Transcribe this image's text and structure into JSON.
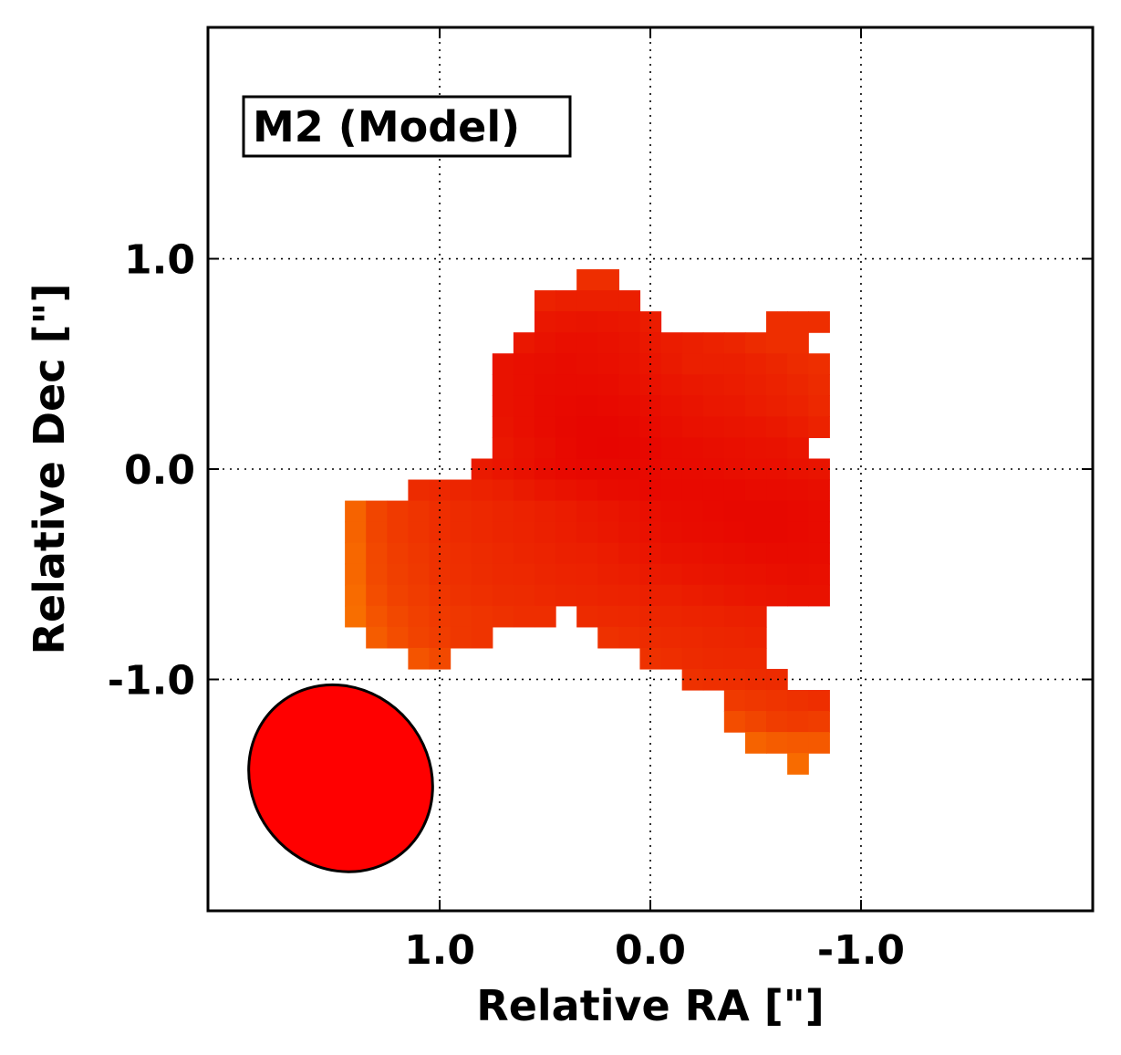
{
  "chart_data": {
    "type": "heatmap",
    "panel_label": "M2 (Model)",
    "xlabel": "Relative RA [\"]",
    "ylabel": "Relative Dec [\"]",
    "xlim": [
      2.1,
      -2.1
    ],
    "ylim": [
      -2.1,
      2.1
    ],
    "xticks": [
      {
        "value": 1.0,
        "label": "1.0"
      },
      {
        "value": 0.0,
        "label": "0.0"
      },
      {
        "value": -1.0,
        "label": "-1.0"
      }
    ],
    "yticks": [
      {
        "value": 1.0,
        "label": "1.0"
      },
      {
        "value": 0.0,
        "label": "0.0"
      },
      {
        "value": -1.0,
        "label": "-1.0"
      }
    ],
    "grid": true,
    "grid_style": "dotted",
    "colormap": "red-orange (red = bright, orange = faint)",
    "pixel_size_arcsec": 0.1,
    "pixel_rows_note": "each row: dec (center), ra_start (east-most pixel center), values listed toward west in 0.1 arcsec steps; value 0-1 intensity",
    "pixel_rows": [
      {
        "dec": 0.9,
        "ra_start": 0.3,
        "values": [
          0.7,
          0.7
        ]
      },
      {
        "dec": 0.8,
        "ra_start": 0.5,
        "values": [
          0.78,
          0.8,
          0.8,
          0.8,
          0.8
        ]
      },
      {
        "dec": 0.7,
        "ra_start": 0.5,
        "values": [
          0.85,
          0.86,
          0.87,
          0.86,
          0.85,
          0.82
        ]
      },
      {
        "dec": 0.7,
        "ra_start": -0.6,
        "values": [
          0.7,
          0.7,
          0.7
        ]
      },
      {
        "dec": 0.6,
        "ra_start": 0.6,
        "values": [
          0.85,
          0.88,
          0.9,
          0.9,
          0.89,
          0.87,
          0.84,
          0.82,
          0.8,
          0.78,
          0.76,
          0.72,
          0.7,
          0.7
        ]
      },
      {
        "dec": 0.5,
        "ra_start": 0.7,
        "values": [
          0.88,
          0.9,
          0.91,
          0.92,
          0.91,
          0.9,
          0.88,
          0.86,
          0.83,
          0.8,
          0.8,
          0.8,
          0.78,
          0.75,
          0.72,
          0.7
        ]
      },
      {
        "dec": 0.4,
        "ra_start": 0.7,
        "values": [
          0.88,
          0.9,
          0.92,
          0.93,
          0.93,
          0.92,
          0.9,
          0.88,
          0.86,
          0.84,
          0.83,
          0.82,
          0.8,
          0.78,
          0.75,
          0.72
        ]
      },
      {
        "dec": 0.3,
        "ra_start": 0.7,
        "values": [
          0.88,
          0.9,
          0.93,
          0.94,
          0.95,
          0.94,
          0.93,
          0.91,
          0.89,
          0.87,
          0.85,
          0.84,
          0.82,
          0.8,
          0.78,
          0.74
        ]
      },
      {
        "dec": 0.2,
        "ra_start": 0.7,
        "values": [
          0.87,
          0.9,
          0.93,
          0.95,
          0.96,
          0.96,
          0.95,
          0.93,
          0.91,
          0.89,
          0.88,
          0.87,
          0.86,
          0.84,
          0.82,
          0.78
        ]
      },
      {
        "dec": 0.1,
        "ra_start": 0.7,
        "values": [
          0.85,
          0.88,
          0.91,
          0.94,
          0.96,
          0.97,
          0.96,
          0.95,
          0.93,
          0.92,
          0.91,
          0.9,
          0.89,
          0.88,
          0.86
        ]
      },
      {
        "dec": 0.0,
        "ra_start": 0.8,
        "values": [
          0.83,
          0.86,
          0.89,
          0.92,
          0.94,
          0.95,
          0.95,
          0.95,
          0.94,
          0.93,
          0.93,
          0.92,
          0.91,
          0.9,
          0.9,
          0.88,
          0.87
        ]
      },
      {
        "dec": -0.1,
        "ra_start": 1.1,
        "values": [
          0.72,
          0.74,
          0.76,
          0.78,
          0.8,
          0.83,
          0.86,
          0.88,
          0.9,
          0.92,
          0.93,
          0.94,
          0.94,
          0.94,
          0.94,
          0.94,
          0.93,
          0.93,
          0.92,
          0.91
        ]
      },
      {
        "dec": -0.2,
        "ra_start": 1.4,
        "values": [
          0.35,
          0.55,
          0.62,
          0.66,
          0.7,
          0.72,
          0.74,
          0.76,
          0.78,
          0.8,
          0.82,
          0.84,
          0.86,
          0.88,
          0.9,
          0.92,
          0.93,
          0.94,
          0.95,
          0.95,
          0.95,
          0.94,
          0.93
        ]
      },
      {
        "dec": -0.3,
        "ra_start": 1.4,
        "values": [
          0.35,
          0.55,
          0.62,
          0.66,
          0.7,
          0.72,
          0.74,
          0.76,
          0.77,
          0.79,
          0.81,
          0.83,
          0.85,
          0.87,
          0.89,
          0.91,
          0.92,
          0.93,
          0.94,
          0.95,
          0.95,
          0.94,
          0.93
        ]
      },
      {
        "dec": -0.4,
        "ra_start": 1.4,
        "values": [
          0.33,
          0.53,
          0.6,
          0.64,
          0.68,
          0.7,
          0.72,
          0.74,
          0.76,
          0.77,
          0.79,
          0.8,
          0.82,
          0.84,
          0.86,
          0.88,
          0.89,
          0.9,
          0.91,
          0.92,
          0.93,
          0.93,
          0.92
        ]
      },
      {
        "dec": -0.5,
        "ra_start": 1.4,
        "values": [
          0.33,
          0.52,
          0.59,
          0.63,
          0.67,
          0.69,
          0.71,
          0.73,
          0.74,
          0.76,
          0.77,
          0.78,
          0.8,
          0.81,
          0.83,
          0.84,
          0.86,
          0.87,
          0.88,
          0.89,
          0.9,
          0.91,
          0.9
        ]
      },
      {
        "dec": -0.6,
        "ra_start": 1.4,
        "values": [
          0.3,
          0.5,
          0.57,
          0.61,
          0.65,
          0.67,
          0.69,
          0.71,
          0.72,
          0.74,
          0.75,
          0.76,
          0.77,
          0.78,
          0.79,
          0.8,
          0.82,
          0.83,
          0.85,
          0.86,
          0.87,
          0.88,
          0.88
        ]
      },
      {
        "dec": -0.7,
        "ra_start": 1.4,
        "values": [
          0.28,
          0.45,
          0.53,
          0.58,
          0.62,
          0.64,
          0.66,
          0.68,
          0.7,
          0.7
        ]
      },
      {
        "dec": -0.7,
        "ra_start": 0.3,
        "values": [
          0.72,
          0.73,
          0.74,
          0.75,
          0.76,
          0.77,
          0.78,
          0.79,
          0.8
        ]
      },
      {
        "dec": -0.8,
        "ra_start": 1.3,
        "values": [
          0.4,
          0.5,
          0.56,
          0.6,
          0.64,
          0.66
        ]
      },
      {
        "dec": -0.8,
        "ra_start": 0.2,
        "values": [
          0.68,
          0.7,
          0.72,
          0.73,
          0.74,
          0.75,
          0.76,
          0.77
        ]
      },
      {
        "dec": -0.9,
        "ra_start": 1.1,
        "values": [
          0.45,
          0.52
        ]
      },
      {
        "dec": -0.9,
        "ra_start": 0.0,
        "values": [
          0.68,
          0.7,
          0.72,
          0.73,
          0.74,
          0.74
        ]
      },
      {
        "dec": -1.0,
        "ra_start": -0.2,
        "values": [
          0.68,
          0.69,
          0.7,
          0.71,
          0.72
        ]
      },
      {
        "dec": -1.1,
        "ra_start": -0.4,
        "values": [
          0.62,
          0.64,
          0.66,
          0.68,
          0.7
        ]
      },
      {
        "dec": -1.2,
        "ra_start": -0.4,
        "values": [
          0.5,
          0.55,
          0.6,
          0.62,
          0.6
        ]
      },
      {
        "dec": -1.3,
        "ra_start": -0.5,
        "values": [
          0.35,
          0.4,
          0.42,
          0.42
        ]
      },
      {
        "dec": -1.4,
        "ra_start": -0.7,
        "values": [
          0.3
        ]
      }
    ],
    "beam": {
      "center_ra": 1.47,
      "center_dec": -1.47,
      "major_axis_arcsec": 0.92,
      "minor_axis_arcsec": 0.84,
      "position_angle_deg": -40,
      "fill": "#ff0000"
    },
    "colors": {
      "bright": "#e60000",
      "faint": "#ff9900",
      "beam": "#ff0000"
    }
  }
}
